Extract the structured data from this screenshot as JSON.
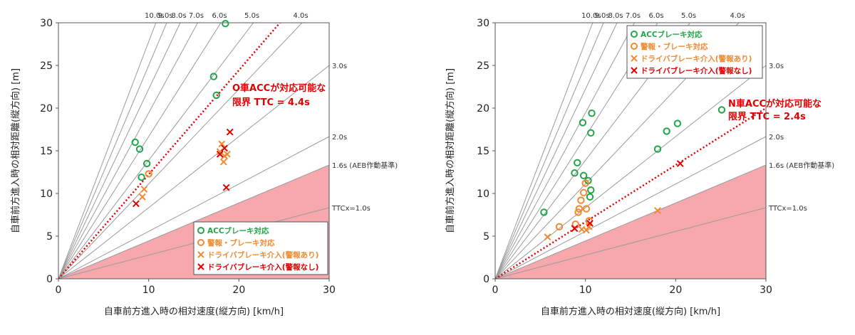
{
  "chart_data": [
    {
      "type": "scatter",
      "title": "",
      "xlabel": "自車前方進入時の相対速度(縦方向) [km/h]",
      "ylabel": "自車前方進入時の相対距離(縦方向) [m]",
      "xlim": [
        0,
        30
      ],
      "ylim": [
        0,
        30
      ],
      "xticks": [
        "0",
        "10",
        "20",
        "30"
      ],
      "yticks": [
        "0",
        "5",
        "10",
        "15",
        "20",
        "25",
        "30"
      ],
      "grid": false,
      "legend_position": "bottom-right",
      "ttc_lines": [
        {
          "label": "10.0s",
          "ttc": 10.0
        },
        {
          "label": "9.0s",
          "ttc": 9.0
        },
        {
          "label": "8.0s",
          "ttc": 8.0
        },
        {
          "label": "7.0s",
          "ttc": 7.0
        },
        {
          "label": "6.0s",
          "ttc": 6.0
        },
        {
          "label": "5.0s",
          "ttc": 5.0
        },
        {
          "label": "4.0s",
          "ttc": 4.0
        },
        {
          "label": "3.0s",
          "ttc": 3.0
        },
        {
          "label": "2.0s",
          "ttc": 2.0
        },
        {
          "label": "1.6s (AEB作動基準)",
          "ttc": 1.6
        },
        {
          "label": "TTCx=1.0s",
          "ttc": 1.0
        }
      ],
      "shaded_region_ttc": 1.6,
      "limit_line": {
        "ttc": 4.4,
        "label_line1": "O車ACCが対応可能な",
        "label_line2": "限界 TTC = 4.4s",
        "color": "#e00000"
      },
      "series": [
        {
          "name": "ACCブレーキ対応",
          "marker": "circle",
          "color": "#22a44a",
          "points": [
            [
              8.5,
              16.0
            ],
            [
              9.0,
              15.2
            ],
            [
              9.2,
              11.9
            ],
            [
              9.8,
              13.5
            ],
            [
              17.2,
              23.7
            ],
            [
              17.5,
              21.5
            ],
            [
              18.5,
              29.9
            ]
          ]
        },
        {
          "name": "警報・ブレーキ対応",
          "marker": "circle",
          "color": "#f08a30",
          "points": [
            [
              10.0,
              12.3
            ]
          ]
        },
        {
          "name": "ドライバブレーキ介入(警報あり)",
          "marker": "cross",
          "color": "#f08a30",
          "points": [
            [
              9.3,
              9.6
            ],
            [
              9.5,
              10.5
            ],
            [
              17.9,
              14.9
            ],
            [
              18.1,
              15.8
            ],
            [
              18.3,
              13.7
            ],
            [
              18.4,
              14.4
            ],
            [
              18.7,
              14.6
            ]
          ]
        },
        {
          "name": "ドライバブレーキ介入(警報なし)",
          "marker": "cross",
          "color": "#e00000",
          "points": [
            [
              8.6,
              8.8
            ],
            [
              17.9,
              14.6
            ],
            [
              18.4,
              15.3
            ],
            [
              18.6,
              10.7
            ],
            [
              19.0,
              17.2
            ]
          ]
        }
      ]
    },
    {
      "type": "scatter",
      "title": "",
      "xlabel": "自車前方進入時の相対速度(縦方向) [km/h]",
      "ylabel": "自車前方進入時の相対距離(縦方向) [m]",
      "xlim": [
        0,
        30
      ],
      "ylim": [
        0,
        30
      ],
      "xticks": [
        "0",
        "10",
        "20",
        "30"
      ],
      "yticks": [
        "0",
        "5",
        "10",
        "15",
        "20",
        "25",
        "30"
      ],
      "grid": false,
      "legend_position": "top-left",
      "ttc_lines": [
        {
          "label": "10.0s",
          "ttc": 10.0
        },
        {
          "label": "9.0s",
          "ttc": 9.0
        },
        {
          "label": "8.0s",
          "ttc": 8.0
        },
        {
          "label": "7.0s",
          "ttc": 7.0
        },
        {
          "label": "6.0s",
          "ttc": 6.0
        },
        {
          "label": "5.0s",
          "ttc": 5.0
        },
        {
          "label": "4.0s",
          "ttc": 4.0
        },
        {
          "label": "3.0s",
          "ttc": 3.0
        },
        {
          "label": "2.0s",
          "ttc": 2.0
        },
        {
          "label": "1.6s (AEB作動基準)",
          "ttc": 1.6
        },
        {
          "label": "TTCx=1.0s",
          "ttc": 1.0
        }
      ],
      "shaded_region_ttc": 1.6,
      "limit_line": {
        "ttc": 2.4,
        "label_line1": "N車ACCが対応可能な",
        "label_line2": "限界 TTC = 2.4s",
        "color": "#e00000"
      },
      "series": [
        {
          "name": "ACCブレーキ対応",
          "marker": "circle",
          "color": "#22a44a",
          "points": [
            [
              5.4,
              7.8
            ],
            [
              8.8,
              12.4
            ],
            [
              9.1,
              13.6
            ],
            [
              9.7,
              18.3
            ],
            [
              9.8,
              12.1
            ],
            [
              10.3,
              11.5
            ],
            [
              10.5,
              9.6
            ],
            [
              10.6,
              10.4
            ],
            [
              10.6,
              17.1
            ],
            [
              10.7,
              19.4
            ],
            [
              18.0,
              15.2
            ],
            [
              19.0,
              17.3
            ],
            [
              20.2,
              18.2
            ],
            [
              25.1,
              19.8
            ]
          ]
        },
        {
          "name": "警報・ブレーキ対応",
          "marker": "circle",
          "color": "#f08a30",
          "points": [
            [
              7.1,
              6.1
            ],
            [
              8.9,
              6.4
            ],
            [
              9.2,
              7.8
            ],
            [
              9.3,
              8.2
            ],
            [
              9.5,
              9.2
            ],
            [
              9.8,
              10.1
            ],
            [
              10.0,
              11.2
            ],
            [
              10.1,
              8.2
            ],
            [
              10.4,
              6.8
            ]
          ]
        },
        {
          "name": "ドライバブレーキ介入(警報あり)",
          "marker": "cross",
          "color": "#f08a30",
          "points": [
            [
              5.8,
              4.9
            ],
            [
              9.6,
              5.8
            ],
            [
              10.1,
              5.7
            ],
            [
              10.4,
              6.1
            ],
            [
              18.0,
              8.0
            ]
          ]
        },
        {
          "name": "ドライバブレーキ介入(警報なし)",
          "marker": "cross",
          "color": "#e00000",
          "points": [
            [
              8.8,
              5.9
            ],
            [
              10.5,
              6.5
            ],
            [
              20.5,
              13.5
            ]
          ]
        }
      ]
    }
  ]
}
